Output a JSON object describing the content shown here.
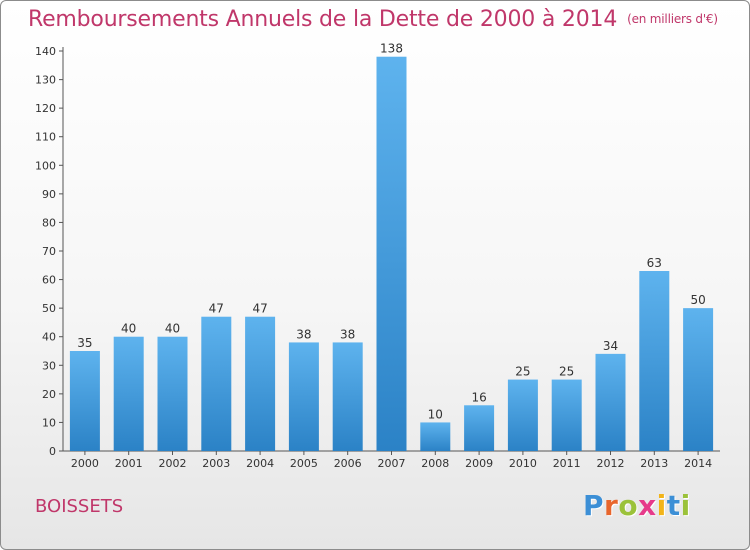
{
  "header": {
    "title": "Remboursements Annuels de la Dette de 2000 à 2014",
    "unit": "(en milliers d'€)"
  },
  "footer": {
    "place": "BOISSETS",
    "logo_letters": [
      "P",
      "r",
      "o",
      "x",
      "i",
      "t",
      "i"
    ],
    "logo_colors": [
      "#3c8fd6",
      "#e8662c",
      "#9bc23a",
      "#e63a8a",
      "#f2b419",
      "#3c8fd6",
      "#9bc23a"
    ]
  },
  "chart_data": {
    "type": "bar",
    "categories": [
      "2000",
      "2001",
      "2002",
      "2003",
      "2004",
      "2005",
      "2006",
      "2007",
      "2008",
      "2009",
      "2010",
      "2011",
      "2012",
      "2013",
      "2014"
    ],
    "values": [
      35,
      40,
      40,
      47,
      47,
      38,
      38,
      138,
      10,
      16,
      25,
      25,
      34,
      63,
      50
    ],
    "title": "Remboursements Annuels de la Dette de 2000 à 2014",
    "ylim": [
      0,
      140
    ],
    "yticks": [
      0,
      10,
      20,
      30,
      40,
      50,
      60,
      70,
      80,
      90,
      100,
      110,
      120,
      130,
      140
    ],
    "grid": false,
    "colors": {
      "bar_light": "#5eb3ee",
      "bar_dark": "#2b82c6",
      "label": "#333333",
      "title": "#c0376a"
    }
  }
}
